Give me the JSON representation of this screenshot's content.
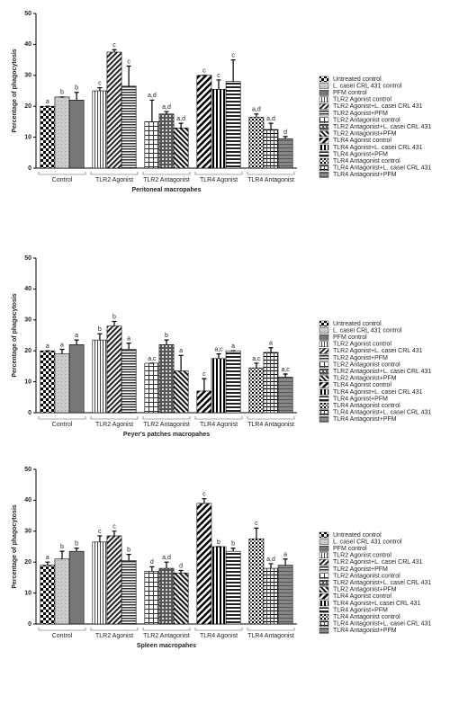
{
  "chart_data": [
    {
      "type": "bar",
      "ylabel": "Percentage of phagocytosis",
      "xlabel": "Peritoneal macropahes",
      "categories": [
        "Untreated control",
        "L. casei CRL 431 control",
        "PFM control",
        "TLR2 Agonist control",
        "TLR2 Agonist+L. casei CRL 431",
        "TLR2 Agonist+PFM",
        "TLR2 Antagonist control",
        "TLR2 Antagonist+L. casei CRL 431",
        "TLR2 Antagonist+PFM",
        "TLR4 Agonist control",
        "TLR4 Agonist+L. casei CRL 431",
        "TLR4 Agonist+PFM",
        "TLR4 Antagonist control",
        "TLR4 Antagonist+L. casei CRL 431",
        "TLR4 Antagonist+PFM"
      ],
      "groups": [
        "Control",
        "TLR2 Agonist",
        "TLR2 Antagonist",
        "TLR4 Agonist",
        "TLR4 Antagonist"
      ],
      "values": [
        20,
        23,
        22,
        25,
        37.5,
        26.5,
        15,
        17.5,
        13,
        30,
        25.5,
        28,
        16.5,
        12.5,
        9.5
      ],
      "errors": [
        0,
        0,
        2.5,
        1,
        0.8,
        6.5,
        7,
        0.8,
        1.5,
        0,
        3,
        7,
        1,
        2,
        0.7
      ],
      "annotations": [
        "a",
        "b",
        "b",
        "c",
        "c",
        "c",
        "a,d",
        "a,d",
        "a,d",
        "c",
        "c",
        "c",
        "a,d",
        "a,d",
        "d"
      ],
      "ylim": [
        0,
        50
      ],
      "yticks": [
        0,
        10,
        20,
        30,
        40,
        50
      ]
    },
    {
      "type": "bar",
      "ylabel": "Percentage of phagocytosis",
      "xlabel": "Peyer's patches macropahes",
      "categories": [
        "Untreated control",
        "L. casei CRL 431 control",
        "PFM control",
        "TLR2 Agonist control",
        "TLR2 Agonist+L. casei CRL 431",
        "TLR2 Agonist+PFM",
        "TLR2 Antagonist control",
        "TLR2 Antagonist+L. casei CRL 431",
        "TLR2 Antagonist+PFM",
        "TLR4 Agonist control",
        "TLR4 Agonist+L. casei CRL 431",
        "TLR4 Agonist+PFM",
        "TLR4 Antagonist control",
        "TLR4 Antagonist+L. casei CRL 431",
        "TLR4 Antagonist+PFM"
      ],
      "groups": [
        "Control",
        "TLR2 Agonist",
        "TLR2 Antagonist",
        "TLR4 Agonist",
        "TLR4 Antagonist"
      ],
      "values": [
        20,
        19,
        22,
        23.5,
        28,
        20.5,
        16,
        22,
        13.5,
        7,
        17.5,
        20,
        14.5,
        19.5,
        11.5
      ],
      "errors": [
        0,
        1.5,
        1.5,
        2,
        1.5,
        2,
        0,
        1.5,
        5,
        4,
        1.5,
        0,
        1.5,
        1.5,
        1
      ],
      "annotations": [
        "a",
        "a",
        "a",
        "b",
        "b",
        "a",
        "a,c",
        "b",
        "a",
        "c",
        "a,c",
        "a",
        "a,c",
        "a",
        "a,c"
      ],
      "ylim": [
        0,
        50
      ],
      "yticks": [
        0,
        10,
        20,
        30,
        40,
        50
      ]
    },
    {
      "type": "bar",
      "ylabel": "Percentage of phagocytosis",
      "xlabel": "Spleen macropahes",
      "categories": [
        "Untreated control",
        "L. casei CRL 431 control",
        "PFM control",
        "TLR2 Agonist control",
        "TLR2 Agonist+L. casei CRL 431",
        "TLR2 Agonist+PFM",
        "TLR2 Antagonist control",
        "TLR2 Antagonist+L. casei CRL 431",
        "TLR2 Antagonist+PFM",
        "TLR4 Agonist control",
        "TLR4 Agonist+L casei CRL 431",
        "TLR4 Agonist+PFM",
        "TLR4 Antagonist control",
        "TLR4 Antagonist+L. casei CRL 431",
        "TLR4 Antagonist+PFM"
      ],
      "groups": [
        "Control",
        "TLR2 Agonist",
        "TLR2 Antagonist",
        "TLR4 Agonist",
        "TLR4 Antagonist"
      ],
      "values": [
        19,
        21,
        23.5,
        26.5,
        28.5,
        20.5,
        17,
        18,
        16.5,
        39,
        25,
        23.5,
        27.5,
        18,
        19
      ],
      "errors": [
        1,
        2.5,
        1,
        2,
        1.5,
        2,
        1.5,
        2,
        0.8,
        1.5,
        0,
        1,
        3.5,
        1.5,
        2
      ],
      "annotations": [
        "a",
        "b",
        "b",
        "c",
        "c",
        "b",
        "d",
        "a,d",
        "d",
        "c",
        "b",
        "b",
        "c",
        "a,d",
        "a"
      ],
      "ylim": [
        0,
        50
      ],
      "yticks": [
        0,
        10,
        20,
        30,
        40,
        50
      ]
    }
  ]
}
